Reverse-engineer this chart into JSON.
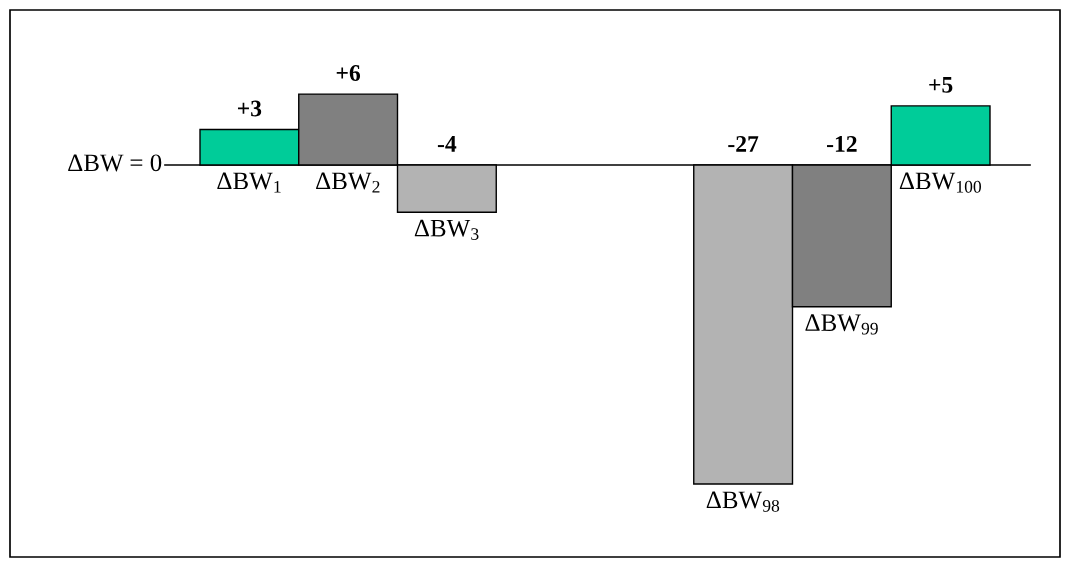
{
  "chart_data": {
    "type": "bar",
    "categories": [
      "ΔBW$_{1}$",
      "ΔBW$_{2}$",
      "ΔBW$_{3}$",
      null,
      null,
      "ΔBW$_{98}$",
      "ΔBW$_{99}$",
      "ΔBW$_{100}$"
    ],
    "values": [
      3,
      6,
      -4,
      null,
      null,
      -27,
      -12,
      5
    ],
    "colors": [
      "#00cc99",
      "#808080",
      "#b3b3b3",
      "#b3b3b3",
      "#b3b3b3",
      "#b3b3b3",
      "#808080",
      "#00cc99"
    ],
    "value_labels": [
      "+3",
      "+6",
      "-4",
      null,
      null,
      "-27",
      "-12",
      "+5"
    ],
    "annotations": [
      "ΔBW = 0"
    ]
  }
}
